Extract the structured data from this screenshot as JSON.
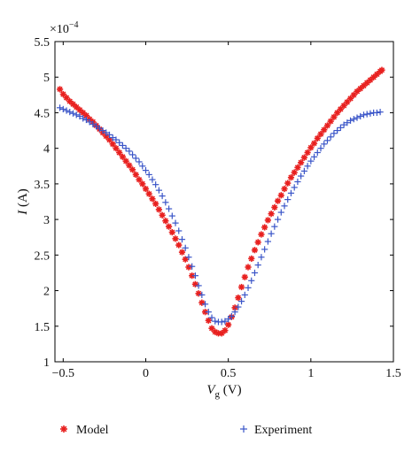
{
  "chart_data": {
    "type": "scatter",
    "title": "",
    "xlabel": {
      "italic": "V",
      "sub": "g",
      "rest": " (V)"
    },
    "ylabel": {
      "italic": "I",
      "rest": " (A)"
    },
    "y_multiplier": "×10",
    "y_exponent": "−4",
    "xlim": [
      -0.55,
      1.5
    ],
    "ylim": [
      1.0,
      5.5
    ],
    "xticks": [
      -0.5,
      0,
      0.5,
      1,
      1.5
    ],
    "xtick_labels": [
      "−0.5",
      "0",
      "0.5",
      "1",
      "1.5"
    ],
    "yticks": [
      1,
      1.5,
      2,
      2.5,
      3,
      3.5,
      4,
      4.5,
      5,
      5.5
    ],
    "ytick_labels": [
      "1",
      "1.5",
      "2",
      "2.5",
      "3",
      "3.5",
      "4",
      "4.5",
      "5",
      "5.5"
    ],
    "grid": false,
    "legend_position": "bottom",
    "series": [
      {
        "name": "Model",
        "marker": "asterisk",
        "color": "#e8201f",
        "points": [
          [
            -0.52,
            4.83
          ],
          [
            -0.5,
            4.76
          ],
          [
            -0.48,
            4.71
          ],
          [
            -0.46,
            4.66
          ],
          [
            -0.44,
            4.62
          ],
          [
            -0.42,
            4.58
          ],
          [
            -0.4,
            4.54
          ],
          [
            -0.38,
            4.5
          ],
          [
            -0.36,
            4.46
          ],
          [
            -0.34,
            4.41
          ],
          [
            -0.32,
            4.37
          ],
          [
            -0.3,
            4.32
          ],
          [
            -0.28,
            4.27
          ],
          [
            -0.26,
            4.22
          ],
          [
            -0.24,
            4.17
          ],
          [
            -0.22,
            4.12
          ],
          [
            -0.2,
            4.06
          ],
          [
            -0.18,
            4.0
          ],
          [
            -0.16,
            3.94
          ],
          [
            -0.14,
            3.88
          ],
          [
            -0.12,
            3.82
          ],
          [
            -0.1,
            3.76
          ],
          [
            -0.08,
            3.7
          ],
          [
            -0.06,
            3.63
          ],
          [
            -0.04,
            3.56
          ],
          [
            -0.02,
            3.5
          ],
          [
            0.0,
            3.43
          ],
          [
            0.02,
            3.36
          ],
          [
            0.04,
            3.29
          ],
          [
            0.06,
            3.22
          ],
          [
            0.08,
            3.14
          ],
          [
            0.1,
            3.06
          ],
          [
            0.12,
            2.98
          ],
          [
            0.14,
            2.9
          ],
          [
            0.16,
            2.82
          ],
          [
            0.18,
            2.73
          ],
          [
            0.2,
            2.64
          ],
          [
            0.22,
            2.54
          ],
          [
            0.24,
            2.44
          ],
          [
            0.26,
            2.33
          ],
          [
            0.28,
            2.21
          ],
          [
            0.3,
            2.09
          ],
          [
            0.32,
            1.96
          ],
          [
            0.34,
            1.83
          ],
          [
            0.36,
            1.7
          ],
          [
            0.38,
            1.58
          ],
          [
            0.4,
            1.47
          ],
          [
            0.42,
            1.42
          ],
          [
            0.44,
            1.4
          ],
          [
            0.46,
            1.4
          ],
          [
            0.48,
            1.44
          ],
          [
            0.5,
            1.52
          ],
          [
            0.52,
            1.63
          ],
          [
            0.54,
            1.76
          ],
          [
            0.56,
            1.9
          ],
          [
            0.58,
            2.05
          ],
          [
            0.6,
            2.19
          ],
          [
            0.62,
            2.33
          ],
          [
            0.64,
            2.45
          ],
          [
            0.66,
            2.57
          ],
          [
            0.68,
            2.68
          ],
          [
            0.7,
            2.79
          ],
          [
            0.72,
            2.89
          ],
          [
            0.74,
            2.99
          ],
          [
            0.76,
            3.08
          ],
          [
            0.78,
            3.17
          ],
          [
            0.8,
            3.26
          ],
          [
            0.82,
            3.34
          ],
          [
            0.84,
            3.43
          ],
          [
            0.86,
            3.51
          ],
          [
            0.88,
            3.59
          ],
          [
            0.9,
            3.66
          ],
          [
            0.92,
            3.73
          ],
          [
            0.94,
            3.8
          ],
          [
            0.96,
            3.87
          ],
          [
            0.98,
            3.94
          ],
          [
            1.0,
            4.01
          ],
          [
            1.02,
            4.07
          ],
          [
            1.04,
            4.14
          ],
          [
            1.06,
            4.2
          ],
          [
            1.08,
            4.26
          ],
          [
            1.1,
            4.32
          ],
          [
            1.12,
            4.38
          ],
          [
            1.14,
            4.44
          ],
          [
            1.16,
            4.5
          ],
          [
            1.18,
            4.55
          ],
          [
            1.2,
            4.6
          ],
          [
            1.22,
            4.65
          ],
          [
            1.24,
            4.7
          ],
          [
            1.26,
            4.75
          ],
          [
            1.28,
            4.8
          ],
          [
            1.3,
            4.84
          ],
          [
            1.32,
            4.88
          ],
          [
            1.34,
            4.92
          ],
          [
            1.36,
            4.96
          ],
          [
            1.38,
            5.0
          ],
          [
            1.4,
            5.04
          ],
          [
            1.42,
            5.08
          ],
          [
            1.43,
            5.1
          ]
        ]
      },
      {
        "name": "Experiment",
        "marker": "plus",
        "color": "#3a55c8",
        "points": [
          [
            -0.52,
            4.57
          ],
          [
            -0.5,
            4.55
          ],
          [
            -0.48,
            4.53
          ],
          [
            -0.46,
            4.51
          ],
          [
            -0.44,
            4.49
          ],
          [
            -0.42,
            4.47
          ],
          [
            -0.4,
            4.45
          ],
          [
            -0.38,
            4.42
          ],
          [
            -0.36,
            4.4
          ],
          [
            -0.34,
            4.37
          ],
          [
            -0.32,
            4.34
          ],
          [
            -0.3,
            4.31
          ],
          [
            -0.28,
            4.28
          ],
          [
            -0.26,
            4.25
          ],
          [
            -0.24,
            4.22
          ],
          [
            -0.22,
            4.19
          ],
          [
            -0.2,
            4.15
          ],
          [
            -0.18,
            4.12
          ],
          [
            -0.16,
            4.08
          ],
          [
            -0.14,
            4.04
          ],
          [
            -0.12,
            4.0
          ],
          [
            -0.1,
            3.96
          ],
          [
            -0.08,
            3.91
          ],
          [
            -0.06,
            3.86
          ],
          [
            -0.04,
            3.81
          ],
          [
            -0.02,
            3.75
          ],
          [
            0.0,
            3.69
          ],
          [
            0.02,
            3.63
          ],
          [
            0.04,
            3.56
          ],
          [
            0.06,
            3.49
          ],
          [
            0.08,
            3.41
          ],
          [
            0.1,
            3.33
          ],
          [
            0.12,
            3.24
          ],
          [
            0.14,
            3.15
          ],
          [
            0.16,
            3.05
          ],
          [
            0.18,
            2.95
          ],
          [
            0.2,
            2.84
          ],
          [
            0.22,
            2.72
          ],
          [
            0.24,
            2.6
          ],
          [
            0.26,
            2.47
          ],
          [
            0.28,
            2.34
          ],
          [
            0.3,
            2.21
          ],
          [
            0.32,
            2.07
          ],
          [
            0.34,
            1.94
          ],
          [
            0.36,
            1.81
          ],
          [
            0.38,
            1.7
          ],
          [
            0.4,
            1.62
          ],
          [
            0.42,
            1.57
          ],
          [
            0.44,
            1.56
          ],
          [
            0.46,
            1.56
          ],
          [
            0.48,
            1.57
          ],
          [
            0.5,
            1.6
          ],
          [
            0.52,
            1.64
          ],
          [
            0.54,
            1.7
          ],
          [
            0.56,
            1.77
          ],
          [
            0.58,
            1.85
          ],
          [
            0.6,
            1.94
          ],
          [
            0.62,
            2.04
          ],
          [
            0.64,
            2.14
          ],
          [
            0.66,
            2.25
          ],
          [
            0.68,
            2.36
          ],
          [
            0.7,
            2.47
          ],
          [
            0.72,
            2.58
          ],
          [
            0.74,
            2.69
          ],
          [
            0.76,
            2.8
          ],
          [
            0.78,
            2.9
          ],
          [
            0.8,
            3.0
          ],
          [
            0.82,
            3.1
          ],
          [
            0.84,
            3.19
          ],
          [
            0.86,
            3.28
          ],
          [
            0.88,
            3.37
          ],
          [
            0.9,
            3.45
          ],
          [
            0.92,
            3.53
          ],
          [
            0.94,
            3.61
          ],
          [
            0.96,
            3.68
          ],
          [
            0.98,
            3.75
          ],
          [
            1.0,
            3.82
          ],
          [
            1.02,
            3.88
          ],
          [
            1.04,
            3.94
          ],
          [
            1.06,
            4.0
          ],
          [
            1.08,
            4.06
          ],
          [
            1.1,
            4.11
          ],
          [
            1.12,
            4.16
          ],
          [
            1.14,
            4.21
          ],
          [
            1.16,
            4.25
          ],
          [
            1.18,
            4.29
          ],
          [
            1.2,
            4.33
          ],
          [
            1.22,
            4.36
          ],
          [
            1.24,
            4.39
          ],
          [
            1.26,
            4.41
          ],
          [
            1.28,
            4.43
          ],
          [
            1.3,
            4.45
          ],
          [
            1.32,
            4.47
          ],
          [
            1.34,
            4.48
          ],
          [
            1.36,
            4.49
          ],
          [
            1.38,
            4.5
          ],
          [
            1.4,
            4.5
          ],
          [
            1.42,
            4.51
          ]
        ]
      }
    ]
  }
}
